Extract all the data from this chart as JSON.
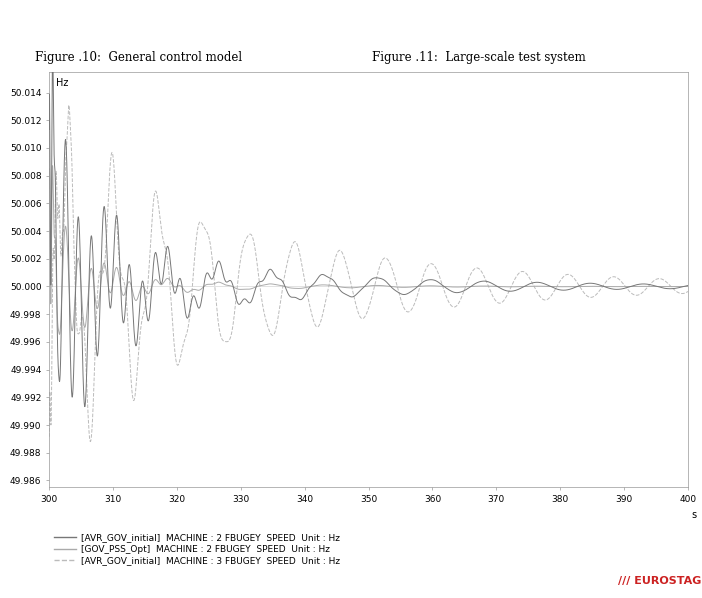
{
  "title_left": "Figure .10:  General control model",
  "title_right": "Figure .11:  Large-scale test system",
  "ylabel_inside": "Hz",
  "xlabel": "s",
  "xlim": [
    300,
    400
  ],
  "ylim_bottom": 49.9855,
  "ylim_top": 50.0155,
  "yticks": [
    49.986,
    49.988,
    49.99,
    49.992,
    49.994,
    49.996,
    49.998,
    50.0,
    50.002,
    50.004,
    50.006,
    50.008,
    50.01,
    50.012,
    50.014
  ],
  "xticks": [
    300,
    310,
    320,
    330,
    340,
    350,
    360,
    370,
    380,
    390,
    400
  ],
  "legend": [
    "[AVR_GOV_initial]  MACHINE : 2 FBUGEY  SPEED  Unit : Hz",
    "[GOV_PSS_Opt]  MACHINE : 2 FBUGEY  SPEED  Unit : Hz",
    "[AVR_GOV_initial]  MACHINE : 3 FBUGEY  SPEED  Unit : Hz"
  ],
  "line1_color": "#777777",
  "line2_color": "#aaaaaa",
  "line3_color": "#bbbbbb",
  "line1_style": "-",
  "line2_style": "-",
  "line3_style": "--",
  "line_width": 0.7,
  "bg_color": "#ffffff",
  "border_color": "#bbbbbb",
  "fig_title_fontsize": 8.5,
  "tick_fontsize": 6.5,
  "inside_label_fontsize": 7,
  "legend_fontsize": 6.5
}
